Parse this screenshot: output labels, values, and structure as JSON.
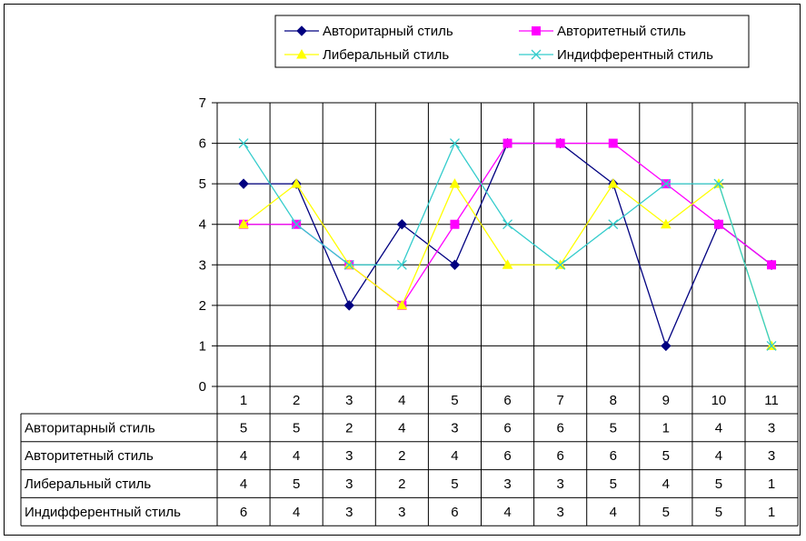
{
  "chart_data": {
    "type": "line",
    "title": "",
    "xlabel": "",
    "ylabel": "",
    "ylim": [
      0,
      7
    ],
    "yticks": [
      "0",
      "1",
      "2",
      "3",
      "4",
      "5",
      "6",
      "7"
    ],
    "categories": [
      "1",
      "2",
      "3",
      "4",
      "5",
      "6",
      "7",
      "8",
      "9",
      "10",
      "11"
    ],
    "grid": true,
    "legend_position": "top",
    "data_table": true,
    "series": [
      {
        "name": "Авторитарный стиль",
        "values": [
          5,
          5,
          2,
          4,
          3,
          6,
          6,
          5,
          1,
          4,
          3
        ],
        "color": "#000080",
        "marker": "diamond"
      },
      {
        "name": "Авторитетный стиль",
        "values": [
          4,
          4,
          3,
          2,
          4,
          6,
          6,
          6,
          5,
          4,
          3
        ],
        "color": "#FF00FF",
        "marker": "square"
      },
      {
        "name": "Либеральный стиль",
        "values": [
          4,
          5,
          3,
          2,
          5,
          3,
          3,
          5,
          4,
          5,
          1
        ],
        "color": "#FFFF00",
        "marker": "triangle"
      },
      {
        "name": "Индифферентный стиль",
        "values": [
          6,
          4,
          3,
          3,
          6,
          4,
          3,
          4,
          5,
          5,
          1
        ],
        "color": "#33CCCC",
        "marker": "x"
      }
    ]
  }
}
